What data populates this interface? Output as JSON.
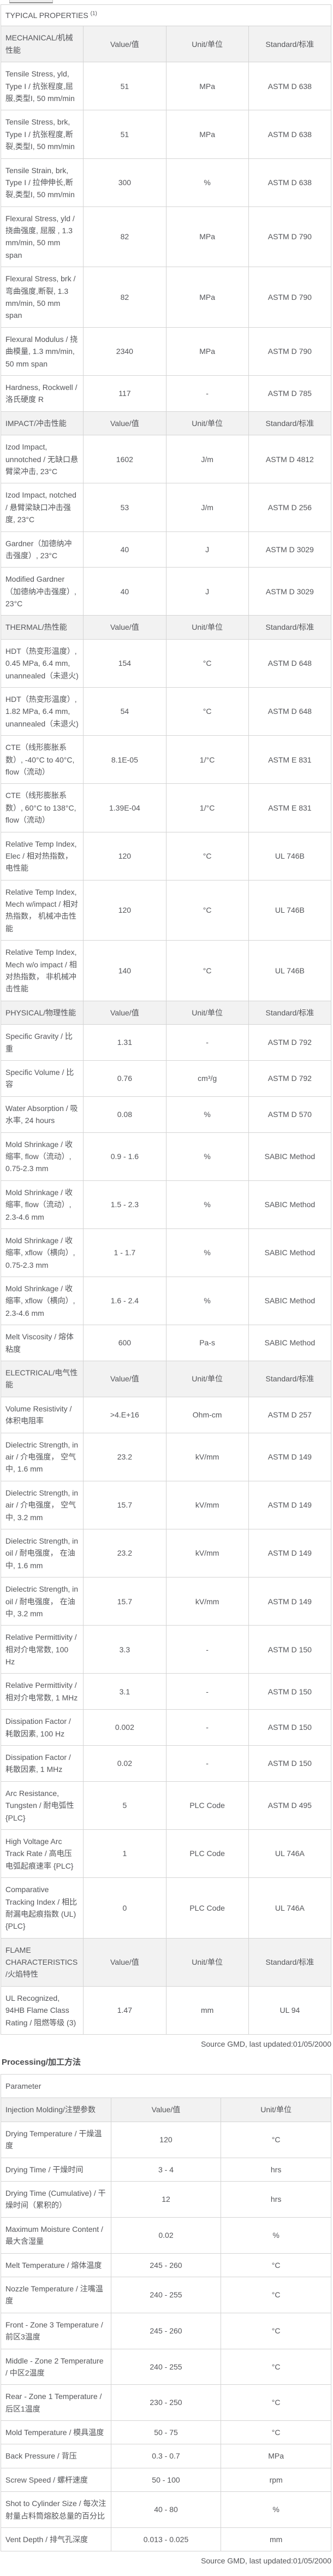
{
  "typical": {
    "title": "TYPICAL PROPERTIES",
    "title_sup": "(1)",
    "columns": {
      "value": "Value/值",
      "unit": "Unit/单位",
      "standard": "Standard/标准"
    },
    "sections": [
      {
        "name": "MECHANICAL/机械性能",
        "rows": [
          {
            "property": "Tensile Stress, yld, Type I / 抗张程度,屈服,类型I, 50 mm/min",
            "value": "51",
            "unit": "MPa",
            "standard": "ASTM D 638"
          },
          {
            "property": "Tensile Stress, brk, Type I / 抗张程度,断裂,类型I, 50 mm/min",
            "value": "51",
            "unit": "MPa",
            "standard": "ASTM D 638"
          },
          {
            "property": "Tensile Strain, brk, Type I / 拉伸伸长,断裂,类型I, 50 mm/min",
            "value": "300",
            "unit": "%",
            "standard": "ASTM D 638"
          },
          {
            "property": "Flexural Stress, yld / 挠曲强度, 屈服 , 1.3 mm/min, 50 mm span",
            "value": "82",
            "unit": "MPa",
            "standard": "ASTM D 790"
          },
          {
            "property": "Flexural Stress, brk / 弯曲强度,断裂, 1.3 mm/min, 50 mm span",
            "value": "82",
            "unit": "MPa",
            "standard": "ASTM D 790"
          },
          {
            "property": "Flexural Modulus / 挠曲模量, 1.3 mm/min, 50 mm span",
            "value": "2340",
            "unit": "MPa",
            "standard": "ASTM D 790"
          },
          {
            "property": "Hardness,  Rockwell / 洛氏硬度 R",
            "value": "117",
            "unit": "-",
            "standard": "ASTM D 785"
          }
        ]
      },
      {
        "name": "IMPACT/冲击性能",
        "rows": [
          {
            "property": "Izod Impact, unnotched / 无缺口悬臂梁冲击, 23°C",
            "value": "1602",
            "unit": "J/m",
            "standard": "ASTM D 4812"
          },
          {
            "property": "Izod Impact, notched / 悬臂梁缺口冲击强度, 23°C",
            "value": "53",
            "unit": "J/m",
            "standard": "ASTM D 256"
          },
          {
            "property": "Gardner（加德纳冲击强度）, 23°C",
            "value": "40",
            "unit": "J",
            "standard": "ASTM D 3029"
          },
          {
            "property": "Modified Gardner（加德纳冲击强度）, 23°C",
            "value": "40",
            "unit": "J",
            "standard": "ASTM D 3029"
          }
        ]
      },
      {
        "name": "THERMAL/热性能",
        "rows": [
          {
            "property": "HDT（热变形温度）, 0.45 MPa, 6.4 mm, unannealed（未退火)",
            "value": "154",
            "unit": "°C",
            "standard": "ASTM D 648"
          },
          {
            "property": "HDT（热变形温度）, 1.82 MPa, 6.4 mm, unannealed（未退火)",
            "value": "54",
            "unit": "°C",
            "standard": "ASTM D 648"
          },
          {
            "property": "CTE（线形膨胀系数）, -40°C to 40°C, flow（流动）",
            "value": "8.1E-05",
            "unit": "1/°C",
            "standard": "ASTM E 831"
          },
          {
            "property": "CTE（线形膨胀系数）, 60°C to 138°C, flow（流动）",
            "value": "1.39E-04",
            "unit": "1/°C",
            "standard": "ASTM E 831"
          },
          {
            "property": "Relative Temp Index, Elec / 相对热指数， 电性能",
            "value": "120",
            "unit": "°C",
            "standard": "UL 746B"
          },
          {
            "property": "Relative Temp Index, Mech w/impact / 相对热指数， 机械冲击性能",
            "value": "120",
            "unit": "°C",
            "standard": "UL 746B"
          },
          {
            "property": "Relative Temp Index, Mech w/o impact / 相对热指数， 非机械冲击性能",
            "value": "140",
            "unit": "°C",
            "standard": "UL 746B"
          }
        ]
      },
      {
        "name": "PHYSICAL/物理性能",
        "rows": [
          {
            "property": "Specific Gravity / 比重",
            "value": "1.31",
            "unit": "-",
            "standard": "ASTM D 792"
          },
          {
            "property": "Specific Volume / 比容",
            "value": "0.76",
            "unit": "cm³/g",
            "standard": "ASTM D 792"
          },
          {
            "property": "Water Absorption / 吸水率, 24 hours",
            "value": "0.08",
            "unit": "%",
            "standard": "ASTM D 570"
          },
          {
            "property": "Mold Shrinkage / 收缩率, flow（流动）, 0.75-2.3 mm",
            "value": "0.9 - 1.6",
            "unit": "%",
            "standard": "SABIC Method"
          },
          {
            "property": "Mold Shrinkage / 收缩率, flow（流动）, 2.3-4.6 mm",
            "value": "1.5 - 2.3",
            "unit": "%",
            "standard": "SABIC Method"
          },
          {
            "property": "Mold Shrinkage / 收缩率, xflow（横向）, 0.75-2.3 mm",
            "value": "1 - 1.7",
            "unit": "%",
            "standard": "SABIC Method"
          },
          {
            "property": "Mold Shrinkage / 收缩率, xflow（横向）, 2.3-4.6 mm",
            "value": "1.6 - 2.4",
            "unit": "%",
            "standard": "SABIC Method"
          },
          {
            "property": "Melt Viscosity / 熔体粘度",
            "value": "600",
            "unit": "Pa-s",
            "standard": "SABIC Method"
          }
        ]
      },
      {
        "name": "ELECTRICAL/电气性能",
        "rows": [
          {
            "property": "Volume Resistivity / 体积电阻率",
            "value": ">4.E+16",
            "unit": "Ohm-cm",
            "standard": "ASTM D 257"
          },
          {
            "property": "Dielectric Strength, in air / 介电强度， 空气中, 1.6 mm",
            "value": "23.2",
            "unit": "kV/mm",
            "standard": "ASTM D 149"
          },
          {
            "property": "Dielectric Strength, in air / 介电强度， 空气中, 3.2 mm",
            "value": "15.7",
            "unit": "kV/mm",
            "standard": "ASTM D 149"
          },
          {
            "property": "Dielectric Strength, in oil / 耐电强度， 在油中, 1.6 mm",
            "value": "23.2",
            "unit": "kV/mm",
            "standard": "ASTM D 149"
          },
          {
            "property": "Dielectric Strength, in oil / 耐电强度， 在油中, 3.2 mm",
            "value": "15.7",
            "unit": "kV/mm",
            "standard": "ASTM D 149"
          },
          {
            "property": "Relative Permittivity / 相对介电常数, 100 Hz",
            "value": "3.3",
            "unit": "-",
            "standard": "ASTM D 150"
          },
          {
            "property": "Relative Permittivity / 相对介电常数, 1 MHz",
            "value": "3.1",
            "unit": "-",
            "standard": "ASTM D 150"
          },
          {
            "property": "Dissipation Factor / 耗散因素, 100 Hz",
            "value": "0.002",
            "unit": "-",
            "standard": "ASTM D 150"
          },
          {
            "property": "Dissipation Factor / 耗散因素, 1 MHz",
            "value": "0.02",
            "unit": "-",
            "standard": "ASTM D 150"
          },
          {
            "property": "Arc Resistance, Tungsten / 耐电弧性 {PLC}",
            "value": "5",
            "unit": "PLC Code",
            "standard": "ASTM D 495"
          },
          {
            "property": "High Voltage Arc Track Rate / 高电压电弧起痕速率 {PLC}",
            "value": "1",
            "unit": "PLC Code",
            "standard": "UL 746A"
          },
          {
            "property": "Comparative Tracking Index / 相比耐漏电起痕指数 (UL) {PLC}",
            "value": "0",
            "unit": "PLC Code",
            "standard": "UL 746A"
          }
        ]
      },
      {
        "name": "FLAME CHARACTERISTICS/火焰特性",
        "rows": [
          {
            "property": "UL Recognized, 94HB Flame Class Rating / 阻燃等级 (3)",
            "value": "1.47",
            "unit": "mm",
            "standard": "UL 94"
          }
        ]
      }
    ],
    "source": "Source GMD, last updated:01/05/2000"
  },
  "processing": {
    "title": "Processing/加工方法",
    "table_header": "Parameter",
    "section": "Injection Molding/注塑参数",
    "columns": {
      "value": "Value/值",
      "unit": "Unit/单位"
    },
    "rows": [
      {
        "parameter": "Drying Temperature / 干燥温度",
        "value": "120",
        "unit": "°C"
      },
      {
        "parameter": "Drying Time / 干燥时间",
        "value": "3 - 4",
        "unit": "hrs"
      },
      {
        "parameter": "Drying Time (Cumulative) / 干燥时间（累积的）",
        "value": "12",
        "unit": "hrs"
      },
      {
        "parameter": "Maximum Moisture Content / 最大含湿量",
        "value": "0.02",
        "unit": "%"
      },
      {
        "parameter": "Melt Temperature / 熔体温度",
        "value": "245 - 260",
        "unit": "°C"
      },
      {
        "parameter": "Nozzle Temperature / 注嘴温度",
        "value": "240 - 255",
        "unit": "°C"
      },
      {
        "parameter": "Front - Zone 3 Temperature / 前区3温度",
        "value": "245 - 260",
        "unit": "°C"
      },
      {
        "parameter": "Middle - Zone 2 Temperature / 中区2温度",
        "value": "240 - 255",
        "unit": "°C"
      },
      {
        "parameter": "Rear - Zone 1 Temperature / 后区1温度",
        "value": "230 - 250",
        "unit": "°C"
      },
      {
        "parameter": "Mold Temperature / 模具温度",
        "value": "50 - 75",
        "unit": "°C"
      },
      {
        "parameter": "Back Pressure / 背压",
        "value": "0.3 - 0.7",
        "unit": "MPa"
      },
      {
        "parameter": "Screw Speed / 螺杆速度",
        "value": "50 - 100",
        "unit": "rpm"
      },
      {
        "parameter": "Shot to Cylinder Size / 每次注射量占料筒熔胶总量的百分比",
        "value": "40 - 80",
        "unit": "%"
      },
      {
        "parameter": "Vent Depth / 排气孔深度",
        "value": "0.013 - 0.025",
        "unit": "mm"
      }
    ],
    "source": "Source GMD, last updated:01/05/2000"
  },
  "colors": {
    "text": "#55565a",
    "border": "#d4d4d4",
    "section_bg": "#f2f2f2"
  }
}
